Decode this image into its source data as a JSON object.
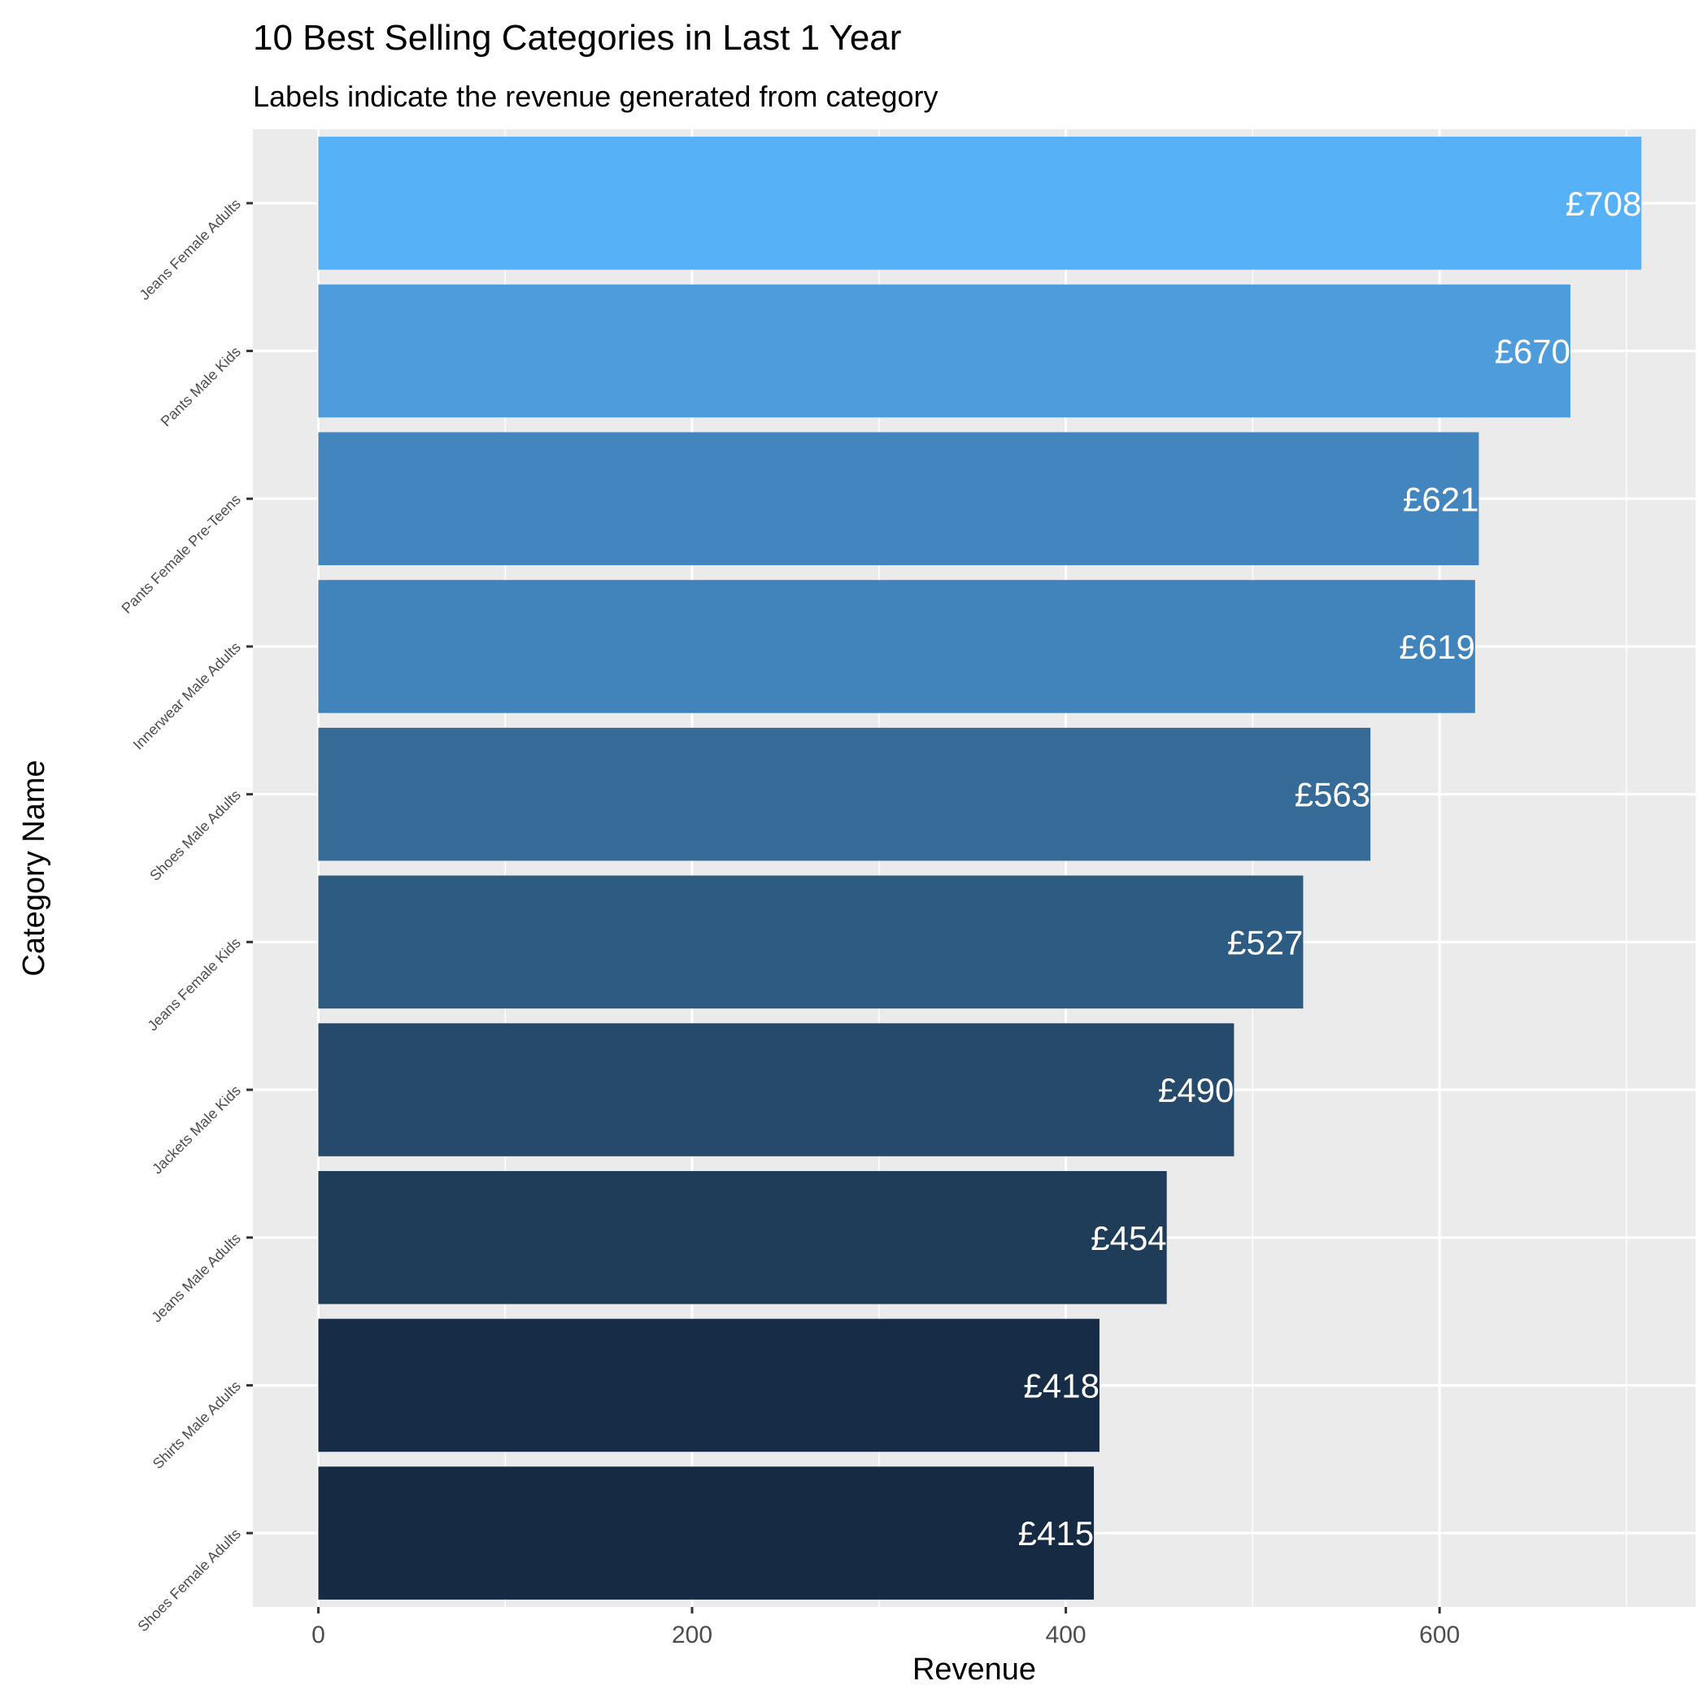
{
  "chart_data": {
    "type": "bar",
    "orientation": "horizontal",
    "title": "10 Best Selling Categories in Last 1 Year",
    "subtitle": "Labels indicate the revenue generated from category",
    "xlabel": "Revenue",
    "ylabel": "Category Name",
    "xlim": [
      -35,
      737
    ],
    "x_ticks": [
      0,
      200,
      400,
      600
    ],
    "x_tick_labels": [
      "0",
      "200",
      "400",
      "600"
    ],
    "grid": true,
    "categories": [
      "Jeans Female Adults",
      "Pants Male Kids",
      "Pants Female Pre-Teens",
      "Innerwear Male Adults",
      "Shoes Male Adults",
      "Jeans Female Kids",
      "Jackets Male Kids",
      "Jeans Male Adults",
      "Shirts Male Adults",
      "Shoes Female Adults"
    ],
    "values": [
      708,
      670,
      621,
      619,
      563,
      527,
      490,
      454,
      418,
      415
    ],
    "data_labels": [
      "£708",
      "£670",
      "£621",
      "£619",
      "£563",
      "£527",
      "£490",
      "£454",
      "£418",
      "£415"
    ],
    "bar_colors": [
      "#56b1f7",
      "#4e9cdc",
      "#4386bf",
      "#4184bc",
      "#366b98",
      "#2d5b82",
      "#254a6c",
      "#1f3c59",
      "#172c46",
      "#162a44"
    ],
    "panel_background": "#ebebeb",
    "grid_color": "#ffffff"
  }
}
